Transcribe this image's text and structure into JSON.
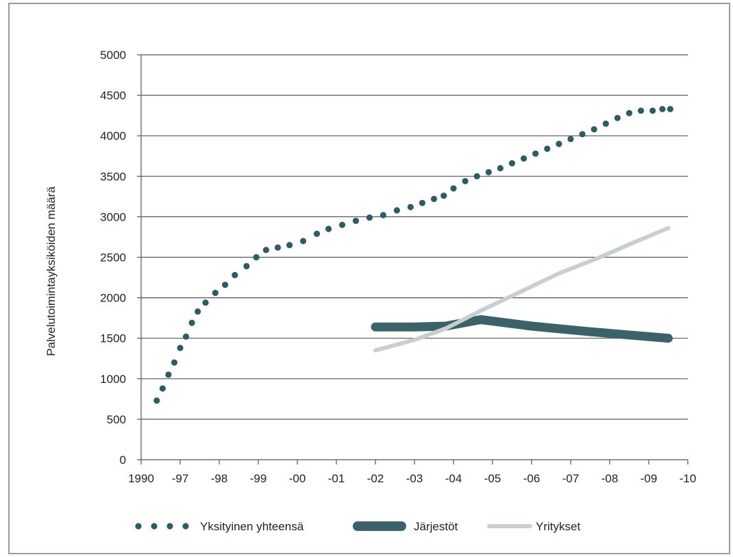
{
  "chart_data": {
    "type": "line",
    "ylabel": "Palvelutoimintayksiköiden määrä",
    "xlabel": "",
    "ylim": [
      0,
      5000
    ],
    "yticks": [
      0,
      500,
      1000,
      1500,
      2000,
      2500,
      3000,
      3500,
      4000,
      4500,
      5000
    ],
    "categories": [
      "1990",
      "-97",
      "-98",
      "-99",
      "-00",
      "-01",
      "-02",
      "-03",
      "-04",
      "-05",
      "-06",
      "-07",
      "-08",
      "-09",
      "-10"
    ],
    "grid": true,
    "legend_position": "bottom",
    "series": [
      {
        "name": "Yksityinen yhteensä",
        "style": "dotted",
        "color": "#2f5c63",
        "points": [
          [
            0.4,
            730
          ],
          [
            0.55,
            880
          ],
          [
            0.7,
            1050
          ],
          [
            0.85,
            1200
          ],
          [
            1.0,
            1380
          ],
          [
            1.15,
            1520
          ],
          [
            1.3,
            1690
          ],
          [
            1.45,
            1830
          ],
          [
            1.65,
            1940
          ],
          [
            1.9,
            2060
          ],
          [
            2.15,
            2160
          ],
          [
            2.4,
            2280
          ],
          [
            2.7,
            2390
          ],
          [
            2.95,
            2500
          ],
          [
            3.2,
            2590
          ],
          [
            3.5,
            2620
          ],
          [
            3.8,
            2650
          ],
          [
            4.15,
            2700
          ],
          [
            4.5,
            2790
          ],
          [
            4.8,
            2850
          ],
          [
            5.15,
            2900
          ],
          [
            5.5,
            2950
          ],
          [
            5.85,
            2990
          ],
          [
            6.2,
            3020
          ],
          [
            6.55,
            3080
          ],
          [
            6.9,
            3120
          ],
          [
            7.2,
            3170
          ],
          [
            7.5,
            3220
          ],
          [
            7.75,
            3260
          ],
          [
            8.0,
            3350
          ],
          [
            8.3,
            3440
          ],
          [
            8.6,
            3500
          ],
          [
            8.9,
            3550
          ],
          [
            9.2,
            3600
          ],
          [
            9.5,
            3660
          ],
          [
            9.8,
            3720
          ],
          [
            10.1,
            3780
          ],
          [
            10.4,
            3840
          ],
          [
            10.7,
            3900
          ],
          [
            11.0,
            3960
          ],
          [
            11.3,
            4020
          ],
          [
            11.6,
            4080
          ],
          [
            11.9,
            4150
          ],
          [
            12.2,
            4220
          ],
          [
            12.5,
            4280
          ],
          [
            12.8,
            4310
          ],
          [
            13.1,
            4310
          ],
          [
            13.35,
            4330
          ],
          [
            13.55,
            4330
          ]
        ]
      },
      {
        "name": "Järjestöt",
        "style": "thick",
        "color": "#3b6169",
        "points": [
          [
            6.0,
            1640
          ],
          [
            7.0,
            1640
          ],
          [
            7.8,
            1650
          ],
          [
            8.7,
            1730
          ],
          [
            10.0,
            1650
          ],
          [
            11.5,
            1580
          ],
          [
            13.5,
            1500
          ]
        ]
      },
      {
        "name": "Yritykset",
        "style": "medium",
        "color": "#c8cfcf",
        "points": [
          [
            6.0,
            1350
          ],
          [
            7.0,
            1480
          ],
          [
            7.8,
            1620
          ],
          [
            8.7,
            1840
          ],
          [
            9.7,
            2070
          ],
          [
            10.7,
            2300
          ],
          [
            11.7,
            2490
          ],
          [
            12.7,
            2700
          ],
          [
            13.5,
            2860
          ]
        ]
      }
    ]
  }
}
